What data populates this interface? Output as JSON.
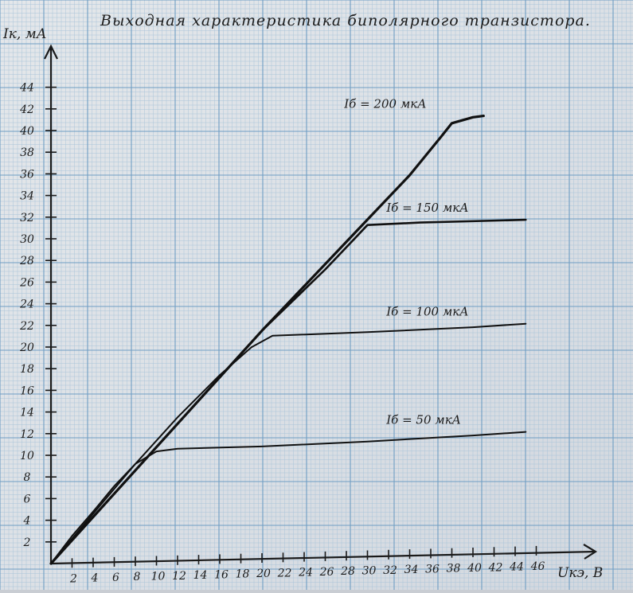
{
  "chart_data": {
    "type": "line",
    "title": "Выходная характеристика биполярного транзистора.",
    "xlabel": "Uкэ, В",
    "ylabel": "Iк, мА",
    "xlim": [
      0,
      46
    ],
    "ylim": [
      0,
      44
    ],
    "x_ticks": [
      2,
      4,
      6,
      8,
      10,
      12,
      14,
      16,
      18,
      20,
      22,
      24,
      26,
      28,
      30,
      32,
      34,
      36,
      38,
      40,
      42,
      44,
      46
    ],
    "y_ticks": [
      2,
      4,
      6,
      8,
      10,
      12,
      14,
      16,
      18,
      20,
      22,
      24,
      26,
      28,
      30,
      32,
      34,
      36,
      38,
      40,
      42,
      44
    ],
    "grid": true,
    "series": [
      {
        "name": "Iб = 50 мкА",
        "x": [
          0,
          2,
          4,
          6,
          8,
          10,
          12,
          20,
          30,
          40,
          45
        ],
        "y": [
          0,
          2.5,
          4.7,
          7,
          9,
          10.1,
          10.3,
          10.3,
          10.5,
          10.8,
          11
        ]
      },
      {
        "name": "Iб = 100 мкА",
        "x": [
          0,
          4,
          8,
          12,
          16,
          19,
          21,
          30,
          40,
          45
        ],
        "y": [
          0,
          4.5,
          9,
          13.2,
          17,
          19.5,
          20.5,
          20.6,
          20.8,
          21
        ]
      },
      {
        "name": "Iб = 150 мкА",
        "x": [
          0,
          10,
          20,
          26,
          29,
          30,
          35,
          45
        ],
        "y": [
          0,
          10.5,
          21,
          26.5,
          29.5,
          30.5,
          30.6,
          30.6
        ]
      },
      {
        "name": "Iб = 200 мкА",
        "x": [
          0,
          10,
          20,
          30,
          34,
          37,
          38,
          40,
          41
        ],
        "y": [
          0,
          10.5,
          21,
          31,
          35,
          38.5,
          39.7,
          40.2,
          40.3
        ]
      }
    ]
  }
}
